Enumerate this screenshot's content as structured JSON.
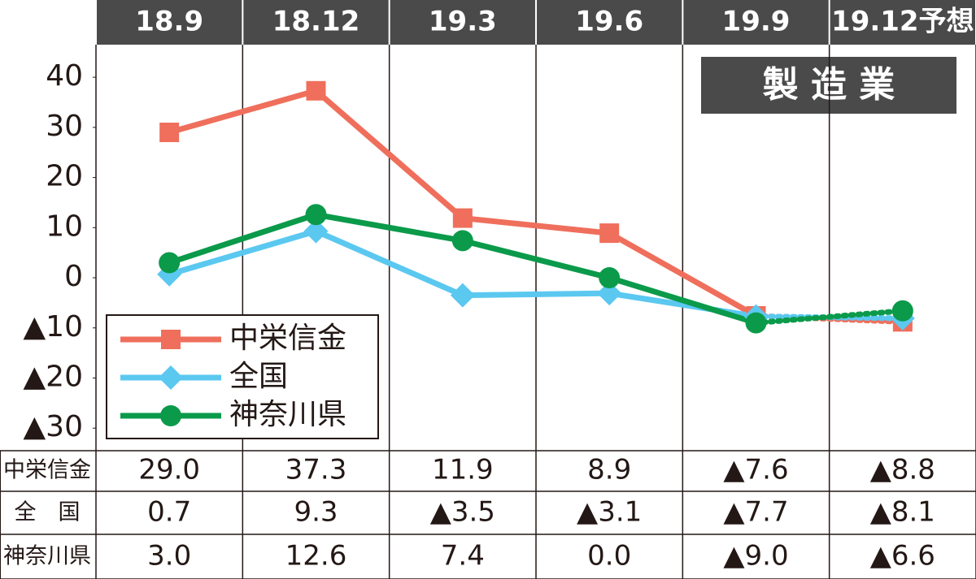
{
  "chart_data": {
    "type": "line",
    "categories": [
      "18.9",
      "18.12",
      "19.3",
      "19.6",
      "19.9",
      "19.12予想"
    ],
    "annotation": "製 造 業",
    "row_labels": [
      "中栄信金",
      "全　国",
      "神奈川県"
    ],
    "series": [
      {
        "name": "中栄信金",
        "color": "#ef6f5c",
        "marker": "square",
        "values": [
          29.0,
          37.3,
          11.9,
          8.9,
          -7.6,
          -8.8
        ],
        "value_labels": [
          "29.0",
          "37.3",
          "11.9",
          "8.9",
          "▲7.6",
          "▲8.8"
        ]
      },
      {
        "name": "全国",
        "color": "#5bc8f0",
        "marker": "diamond",
        "values": [
          0.7,
          9.3,
          -3.5,
          -3.1,
          -7.7,
          -8.1
        ],
        "value_labels": [
          "0.7",
          "9.3",
          "▲3.5",
          "▲3.1",
          "▲7.7",
          "▲8.1"
        ]
      },
      {
        "name": "神奈川県",
        "color": "#0a9a4a",
        "marker": "circle",
        "values": [
          3.0,
          12.6,
          7.4,
          0.0,
          -9.0,
          -6.6
        ],
        "value_labels": [
          "3.0",
          "12.6",
          "7.4",
          "0.0",
          "▲9.0",
          "▲6.6"
        ]
      }
    ],
    "ylim": [
      -34.5,
      46.5
    ],
    "yticks": [
      40,
      30,
      20,
      10,
      0,
      {
        "value": -10,
        "label": "▲10"
      },
      {
        "value": -20,
        "label": "▲20"
      },
      {
        "value": -30,
        "label": "▲30"
      }
    ]
  }
}
